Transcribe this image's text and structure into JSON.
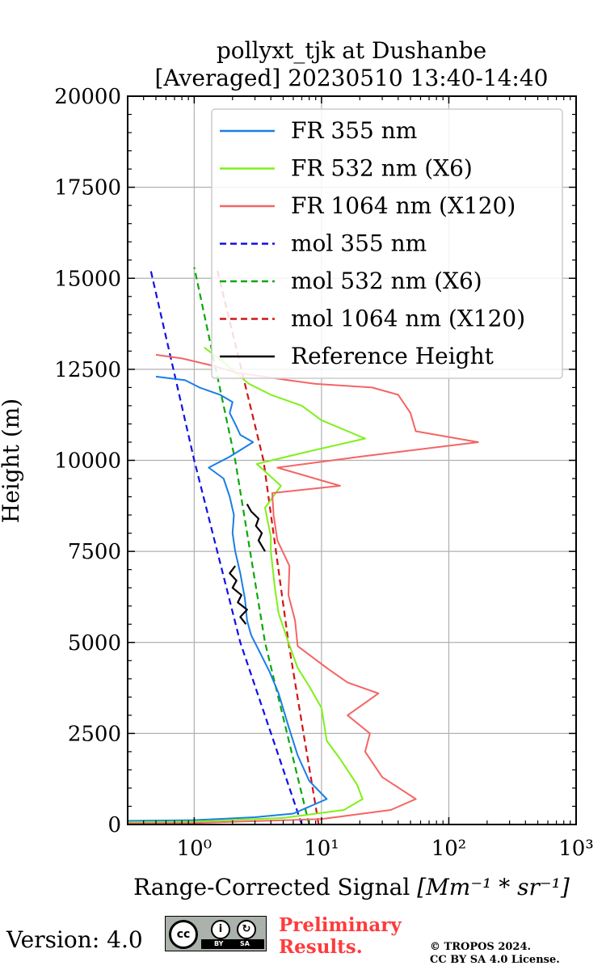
{
  "chart_data": {
    "type": "line",
    "title_line1": "pollyxt_tjk at Dushanbe",
    "title_line2": "[Averaged] 20230510 13:40-14:40",
    "xlabel_text": "Range-Corrected Signal",
    "xlabel_unit": "[Mm⁻¹ * sr⁻¹]",
    "ylabel": "Height (m)",
    "xscale": "log",
    "xlim": [
      0.3,
      1000
    ],
    "ylim": [
      0,
      20000
    ],
    "x_ticks": [
      {
        "value": 1,
        "label": "10⁰"
      },
      {
        "value": 10,
        "label": "10¹"
      },
      {
        "value": 100,
        "label": "10²"
      },
      {
        "value": 1000,
        "label": "10³"
      }
    ],
    "y_ticks": [
      {
        "value": 0,
        "label": "0"
      },
      {
        "value": 2500,
        "label": "2500"
      },
      {
        "value": 5000,
        "label": "5000"
      },
      {
        "value": 7500,
        "label": "7500"
      },
      {
        "value": 10000,
        "label": "10000"
      },
      {
        "value": 12500,
        "label": "12500"
      },
      {
        "value": 15000,
        "label": "15000"
      },
      {
        "value": 17500,
        "label": "17500"
      },
      {
        "value": 20000,
        "label": "20000"
      }
    ],
    "grid": true,
    "legend_position": "top-right",
    "series": [
      {
        "name": "FR 355 nm",
        "color": "#1a7ee6",
        "style": "solid",
        "width": 2,
        "points": [
          [
            0.3,
            100
          ],
          [
            1,
            120
          ],
          [
            3,
            200
          ],
          [
            6,
            300
          ],
          [
            11,
            700
          ],
          [
            8,
            1200
          ],
          [
            6.5,
            1900
          ],
          [
            5.5,
            2700
          ],
          [
            4.6,
            3600
          ],
          [
            3.9,
            4200
          ],
          [
            3.2,
            4800
          ],
          [
            2.8,
            5200
          ],
          [
            2.6,
            5600
          ],
          [
            2.5,
            6200
          ],
          [
            2.3,
            6900
          ],
          [
            2.1,
            7500
          ],
          [
            2.0,
            8000
          ],
          [
            2.05,
            8500
          ],
          [
            1.9,
            9000
          ],
          [
            1.7,
            9500
          ],
          [
            1.3,
            9800
          ],
          [
            1.9,
            10100
          ],
          [
            2.9,
            10500
          ],
          [
            2.3,
            10700
          ],
          [
            2.1,
            11000
          ],
          [
            1.9,
            11300
          ],
          [
            2.0,
            11600
          ],
          [
            1.6,
            11800
          ],
          [
            1.1,
            12000
          ],
          [
            0.85,
            12200
          ],
          [
            0.5,
            12300
          ]
        ]
      },
      {
        "name": "FR 532 nm (X6)",
        "color": "#80f01a",
        "style": "solid",
        "width": 2,
        "points": [
          [
            0.3,
            60
          ],
          [
            1,
            80
          ],
          [
            5,
            180
          ],
          [
            15,
            400
          ],
          [
            21,
            700
          ],
          [
            19,
            1100
          ],
          [
            14,
            1800
          ],
          [
            11,
            2300
          ],
          [
            10,
            3200
          ],
          [
            8,
            3800
          ],
          [
            6.5,
            4300
          ],
          [
            5.5,
            5000
          ],
          [
            4.6,
            5800
          ],
          [
            4.3,
            6500
          ],
          [
            4.0,
            7500
          ],
          [
            4.0,
            7900
          ],
          [
            3.6,
            8700
          ],
          [
            4.8,
            9300
          ],
          [
            3.1,
            9900
          ],
          [
            7,
            10200
          ],
          [
            22,
            10600
          ],
          [
            10,
            11100
          ],
          [
            7,
            11500
          ],
          [
            4,
            11800
          ],
          [
            2.7,
            12100
          ],
          [
            2.2,
            12350
          ],
          [
            1.7,
            12700
          ],
          [
            1.2,
            13100
          ]
        ]
      },
      {
        "name": "FR 1064 nm (X120)",
        "color": "#f56464",
        "style": "solid",
        "width": 2,
        "points": [
          [
            0.3,
            30
          ],
          [
            1,
            40
          ],
          [
            10,
            150
          ],
          [
            35,
            400
          ],
          [
            55,
            700
          ],
          [
            30,
            1300
          ],
          [
            22,
            2000
          ],
          [
            24,
            2500
          ],
          [
            16,
            3000
          ],
          [
            28,
            3600
          ],
          [
            16,
            3900
          ],
          [
            11,
            4300
          ],
          [
            6.5,
            4900
          ],
          [
            6.2,
            5600
          ],
          [
            5.5,
            6300
          ],
          [
            5.6,
            7100
          ],
          [
            4.5,
            7800
          ],
          [
            4.2,
            8500
          ],
          [
            4.1,
            9100
          ],
          [
            14,
            9300
          ],
          [
            4.5,
            9800
          ],
          [
            20,
            10100
          ],
          [
            170,
            10500
          ],
          [
            55,
            10800
          ],
          [
            50,
            11300
          ],
          [
            40,
            11800
          ],
          [
            25,
            12000
          ],
          [
            9,
            12100
          ],
          [
            5.5,
            12200
          ],
          [
            3.5,
            12300
          ],
          [
            2.2,
            12400
          ],
          [
            1.4,
            12600
          ],
          [
            0.8,
            12800
          ],
          [
            0.5,
            12900
          ]
        ]
      },
      {
        "name": "mol 355 nm",
        "color": "#1010e8",
        "style": "dashed",
        "width": 2.2,
        "points": [
          [
            7.0,
            0
          ],
          [
            2.3,
            5000
          ],
          [
            1.0,
            10000
          ],
          [
            0.45,
            15300
          ]
        ]
      },
      {
        "name": "mol 532 nm (X6)",
        "color": "#0aa80a",
        "style": "dashed",
        "width": 2.2,
        "points": [
          [
            8.0,
            0
          ],
          [
            3.6,
            5000
          ],
          [
            2.1,
            10000
          ],
          [
            1.0,
            15300
          ]
        ]
      },
      {
        "name": "mol 1064 nm (X120)",
        "color": "#d21414",
        "style": "dashed",
        "width": 2.2,
        "points": [
          [
            9.5,
            0
          ],
          [
            5.5,
            5000
          ],
          [
            3.5,
            10000
          ],
          [
            1.5,
            15300
          ]
        ]
      },
      {
        "name": "Reference Height",
        "color": "#000000",
        "style": "solid",
        "width": 2.2,
        "segments": [
          [
            [
              2.55,
              5500
            ],
            [
              2.3,
              5700
            ],
            [
              2.6,
              5900
            ],
            [
              2.2,
              6100
            ],
            [
              2.35,
              6300
            ],
            [
              2.0,
              6500
            ],
            [
              2.15,
              6700
            ],
            [
              1.9,
              6900
            ],
            [
              2.1,
              7100
            ]
          ],
          [
            [
              3.6,
              7500
            ],
            [
              3.2,
              7800
            ],
            [
              3.4,
              8000
            ],
            [
              3.05,
              8200
            ],
            [
              3.2,
              8400
            ],
            [
              2.8,
              8600
            ],
            [
              2.6,
              8800
            ]
          ]
        ]
      }
    ]
  },
  "footer": {
    "version_text": "Version: 4.0",
    "cc_main": "cc",
    "cc_by_label": "BY",
    "cc_sa_label": "SA",
    "cc_by_glyph": "i",
    "cc_sa_glyph": "↻",
    "preliminary_line1": "Preliminary",
    "preliminary_line2": "Results.",
    "copyright_line1": "© TROPOS 2024.",
    "copyright_line2": "CC BY SA 4.0 License."
  }
}
